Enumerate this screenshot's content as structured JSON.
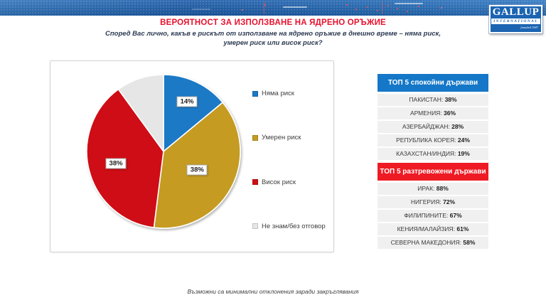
{
  "header": {
    "title": "ВЕРОЯТНОСТ ЗА ИЗПОЛЗВАНЕ НА ЯДРЕНО ОРЪЖИЕ",
    "title_color": "#E8112D",
    "subtitle_line1": "Според Вас лично, какъв е рискът от използване на ядрено оръжие в днешно време – няма риск,",
    "subtitle_line2": "умерен риск или висок риск?"
  },
  "logo": {
    "name": "GALLUP",
    "subname": "INTERNATIONAL",
    "tagline": "founded 1947"
  },
  "chart_data": {
    "type": "pie",
    "title": "ВЕРОЯТНОСТ ЗА ИЗПОЛЗВАНЕ НА ЯДРЕНО ОРЪЖИЕ",
    "start_angle_deg": 0,
    "direction": "clockwise",
    "legend_position": "right",
    "slices": [
      {
        "label": "Няма риск",
        "value": 14,
        "pct_label": "14%",
        "color": "#1B79C6",
        "show_pct": true,
        "label_r": 0.72
      },
      {
        "label": "Умерен риск",
        "value": 38,
        "pct_label": "38%",
        "color": "#C59B22",
        "show_pct": true,
        "label_r": 0.5
      },
      {
        "label": "Висок риск",
        "value": 38,
        "pct_label": "38%",
        "color": "#CE0E14",
        "show_pct": true,
        "label_r": 0.64
      },
      {
        "label": "Не знам/без отговор",
        "value": 10,
        "pct_label": "10%",
        "color": "#E6E6E6",
        "show_pct": false,
        "label_r": 0.8
      }
    ]
  },
  "panel": {
    "sections": [
      {
        "header": "ТОП 5 спокойни държави",
        "header_color": "#1577C8",
        "items": [
          {
            "name": "ПАКИСТАН",
            "value": "38%"
          },
          {
            "name": "АРМЕНИЯ",
            "value": "36%"
          },
          {
            "name": "АЗЕРБАЙДЖАН",
            "value": "28%"
          },
          {
            "name": "РЕПУБЛИКА КОРЕЯ",
            "value": "24%"
          },
          {
            "name": "КАЗАХСТАН/ИНДИЯ",
            "value": "19%"
          }
        ]
      },
      {
        "header": "ТОП 5 разтревожени държави",
        "header_color": "#EE1B24",
        "items": [
          {
            "name": "ИРАК",
            "value": "88%"
          },
          {
            "name": "НИГЕРИЯ",
            "value": "72%"
          },
          {
            "name": "ФИЛИПИНИТЕ",
            "value": "67%"
          },
          {
            "name": "КЕНИЯ/МАЛАЙЗИЯ",
            "value": "61%"
          },
          {
            "name": "СЕВЕРНА МАКЕДОНИЯ",
            "value": "58%"
          }
        ]
      }
    ]
  },
  "footer": {
    "note": "Възможни са минимални отклонения заради закръглявания"
  }
}
